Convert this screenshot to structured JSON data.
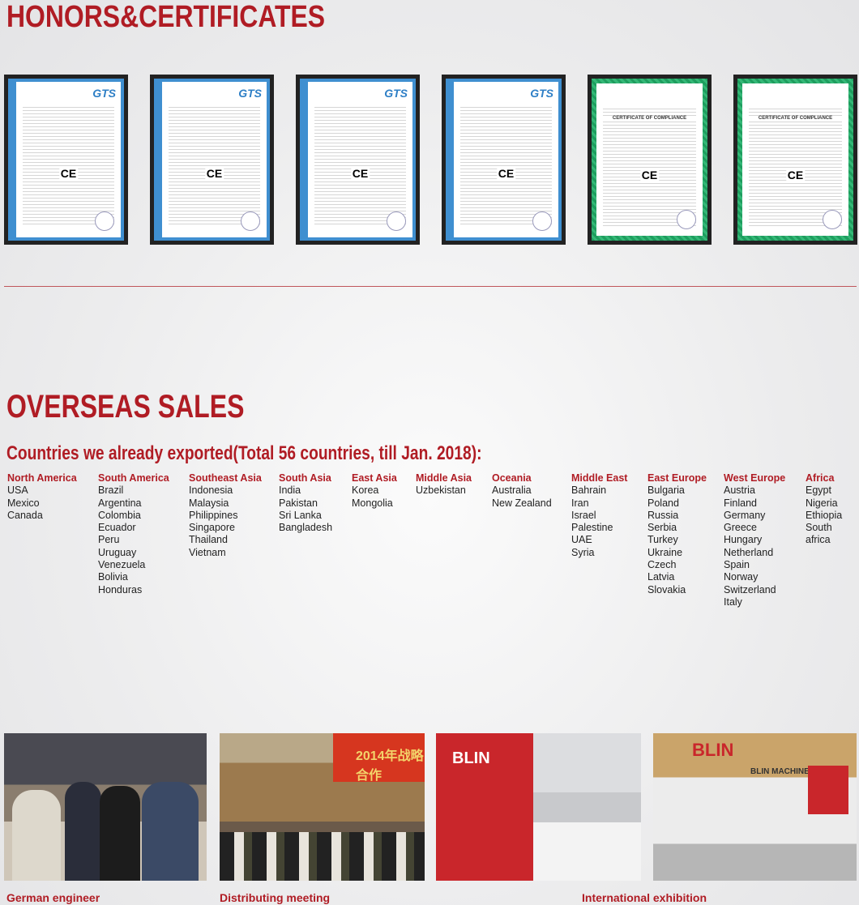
{
  "honors": {
    "title": "HONORS&CERTIFICATES",
    "certificates": [
      {
        "type": "EC attestation certificate",
        "logo": "GTS",
        "color": "#3f8fd0"
      },
      {
        "type": "EC attestation certificate",
        "logo": "GTS",
        "color": "#3f8fd0"
      },
      {
        "type": "EC attestation certificate",
        "logo": "GTS",
        "color": "#3f8fd0"
      },
      {
        "type": "EC attestation certificate",
        "logo": "GTS",
        "color": "#3f8fd0"
      },
      {
        "type": "Certificate of compliance",
        "heading": "CERTIFICATE OF COMPLIANCE",
        "color": "#1e9d5e"
      },
      {
        "type": "Certificate of compliance",
        "heading": "CERTIFICATE OF COMPLIANCE",
        "color": "#1e9d5e"
      }
    ]
  },
  "overseas": {
    "title": "OVERSEAS SALES",
    "subtitle": "Countries we already exported(Total 56 countries, till Jan. 2018):",
    "regions": [
      {
        "name": "North America",
        "countries": [
          "USA",
          "Mexico",
          "Canada"
        ]
      },
      {
        "name": "South America",
        "countries": [
          "Brazil",
          "Argentina",
          "Colombia",
          "Ecuador",
          "Peru",
          "Uruguay",
          "Venezuela",
          "Bolivia",
          "Honduras"
        ]
      },
      {
        "name": "Southeast Asia",
        "countries": [
          "Indonesia",
          "Malaysia",
          "Philippines",
          "Singapore",
          "Thailand",
          "Vietnam"
        ]
      },
      {
        "name": "South Asia",
        "countries": [
          "India",
          "Pakistan",
          "Sri Lanka",
          "Bangladesh"
        ]
      },
      {
        "name": "East Asia",
        "countries": [
          "Korea",
          "Mongolia"
        ]
      },
      {
        "name": "Middle Asia",
        "countries": [
          "Uzbekistan"
        ]
      },
      {
        "name": "Oceania",
        "countries": [
          "Australia",
          "New Zealand"
        ]
      },
      {
        "name": "Middle East",
        "countries": [
          "Bahrain",
          "Iran",
          "Israel",
          "Palestine",
          "UAE",
          "Syria"
        ]
      },
      {
        "name": "East Europe",
        "countries": [
          "Bulgaria",
          "Poland",
          "Russia",
          "Serbia",
          "Turkey",
          "Ukraine",
          "Czech",
          "Latvia",
          "Slovakia"
        ]
      },
      {
        "name": "West Europe",
        "countries": [
          "Austria",
          "Finland",
          "Germany",
          "Greece",
          "Hungary",
          "Netherland",
          "Spain",
          "Norway",
          "Switzerland",
          "Italy"
        ]
      },
      {
        "name": "Africa",
        "countries": [
          "Egypt",
          "Nigeria",
          "Ethiopia",
          "South africa"
        ]
      }
    ]
  },
  "photos": {
    "captions": [
      "German engineer",
      "Distributing meeting",
      "International exhibition"
    ],
    "banner_text": "2014年战略合作",
    "booth_brand": "BLIN",
    "booth_sign": "BLIN MACHINERY"
  },
  "accent": "#b01c24"
}
